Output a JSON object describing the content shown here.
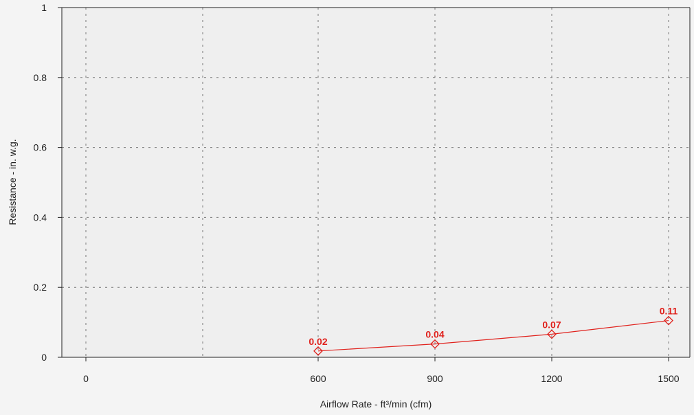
{
  "chart_data": {
    "type": "line",
    "title": "",
    "xlabel": "Airflow Rate - ft³/min (cfm)",
    "ylabel": "Resistance - in. w.g.",
    "x_ticks": [
      "0",
      "600",
      "900",
      "1200",
      "1500"
    ],
    "y_ticks": [
      "0",
      "0.2",
      "0.4",
      "0.6",
      "0.8",
      "1"
    ],
    "ylim": [
      0,
      1
    ],
    "grid": true,
    "series": [
      {
        "x": [
          600,
          900,
          1200,
          1500
        ],
        "y": [
          0.018,
          0.038,
          0.066,
          0.105
        ],
        "labels": [
          "0.02",
          "0.04",
          "0.07",
          "0.11"
        ],
        "color": "#e0211c",
        "marker": "diamond"
      }
    ]
  },
  "colors": {
    "background": "#f4f4f4",
    "plot_background": "#efefef",
    "grid": "#777777",
    "series": "#e0211c"
  }
}
